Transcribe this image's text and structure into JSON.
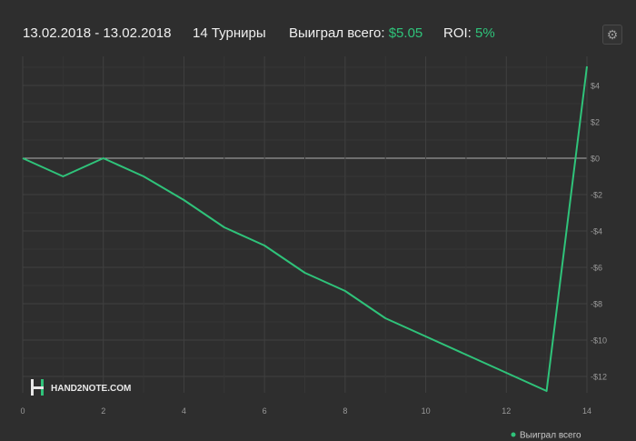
{
  "header": {
    "date_range": "13.02.2018 - 13.02.2018",
    "tournaments": "14 Турниры",
    "won_label": "Выиграл всего:",
    "won_value": "$5.05",
    "roi_label": "ROI:",
    "roi_value": "5%",
    "settings_icon": "gear-icon"
  },
  "logo": {
    "text": "HAND2NOTE.COM",
    "icon": "h2n-logo-icon"
  },
  "colors": {
    "background": "#2e2e2e",
    "line": "#2fc37a",
    "accent": "#2fc37a",
    "grid": "#3b3b3b",
    "zero_line": "#b0b0b0"
  },
  "chart_data": {
    "type": "line",
    "x": [
      0,
      1,
      2,
      3,
      4,
      5,
      6,
      7,
      8,
      9,
      10,
      11,
      12,
      13,
      14
    ],
    "series": [
      {
        "name": "Выиграл всего",
        "values": [
          0,
          -1.0,
          0,
          -1.0,
          -2.3,
          -3.8,
          -4.8,
          -6.3,
          -7.3,
          -8.8,
          -9.8,
          -10.8,
          -11.8,
          -12.8,
          5.05
        ]
      }
    ],
    "x_ticks": [
      0,
      2,
      4,
      6,
      8,
      10,
      12,
      14
    ],
    "y_ticks": [
      4,
      2,
      0,
      -2,
      -4,
      -6,
      -8,
      -10,
      -12
    ],
    "y_tick_labels": [
      "$4",
      "$2",
      "$0",
      "-$2",
      "-$4",
      "-$6",
      "-$8",
      "-$10",
      "-$12"
    ],
    "xlim": [
      0,
      14
    ],
    "ylim": [
      -12.9,
      5.1
    ],
    "grid": true,
    "legend_position": "bottom-right"
  }
}
